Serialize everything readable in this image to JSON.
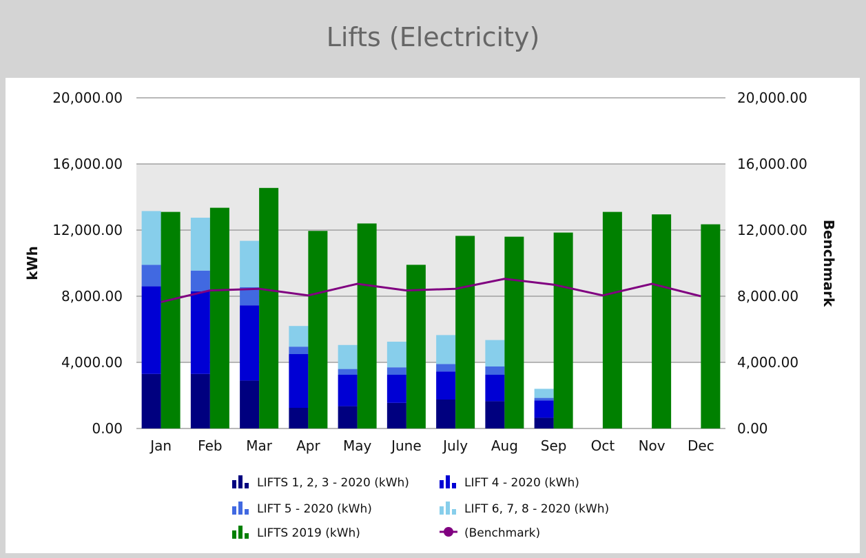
{
  "chart_data": {
    "type": "bar",
    "title": "Lifts (Electricity)",
    "ylabel": "kWh",
    "y2label": "Benchmark",
    "ylim": [
      0,
      20000
    ],
    "y2lim": [
      0,
      20000
    ],
    "y_ticks": [
      "0.00",
      "4,000.00",
      "8,000.00",
      "12,000.00",
      "16,000.00",
      "20,000.00"
    ],
    "y_tick_values": [
      0,
      4000,
      8000,
      12000,
      16000,
      20000
    ],
    "categories": [
      "Jan",
      "Feb",
      "Mar",
      "Apr",
      "May",
      "June",
      "July",
      "Aug",
      "Sep",
      "Oct",
      "Nov",
      "Dec"
    ],
    "shaded_band": [
      4000,
      16000
    ],
    "stacked_series": [
      {
        "name": "LIFTS 1, 2, 3 - 2020 (kWh)",
        "color": "#00007f",
        "values": [
          3300,
          3300,
          2900,
          1250,
          1350,
          1550,
          1750,
          1650,
          650,
          null,
          null,
          null
        ]
      },
      {
        "name": "LIFT 4 - 2020 (kWh)",
        "color": "#0000d4",
        "values": [
          5300,
          5000,
          4550,
          3250,
          1900,
          1700,
          1700,
          1600,
          1050,
          null,
          null,
          null
        ]
      },
      {
        "name": "LIFT 5 - 2020 (kWh)",
        "color": "#4169e1",
        "values": [
          1300,
          1250,
          1100,
          450,
          350,
          450,
          450,
          500,
          150,
          null,
          null,
          null
        ]
      },
      {
        "name": "LIFT 6, 7, 8 - 2020 (kWh)",
        "color": "#87ceeb",
        "values": [
          3250,
          3200,
          2800,
          1250,
          1450,
          1550,
          1750,
          1600,
          550,
          null,
          null,
          null
        ]
      }
    ],
    "bar_series": [
      {
        "name": "LIFTS 2019 (kWh)",
        "color": "#008000",
        "values": [
          13100,
          13350,
          14550,
          11950,
          12400,
          9900,
          11650,
          11600,
          11850,
          13100,
          12950,
          12350
        ]
      }
    ],
    "line_series": [
      {
        "name": "(Benchmark)",
        "color": "#800080",
        "axis": "right",
        "values": [
          7650,
          8350,
          8450,
          8050,
          8750,
          8350,
          8450,
          9050,
          8700,
          8050,
          8750,
          8000
        ]
      }
    ],
    "legend": [
      {
        "label": "LIFTS 1, 2, 3 - 2020 (kWh)",
        "color": "#00007f",
        "kind": "bar"
      },
      {
        "label": "LIFT 4 - 2020 (kWh)",
        "color": "#0000d4",
        "kind": "bar"
      },
      {
        "label": "LIFT 5 - 2020 (kWh)",
        "color": "#4169e1",
        "kind": "bar"
      },
      {
        "label": "LIFT 6, 7, 8 - 2020 (kWh)",
        "color": "#87ceeb",
        "kind": "bar"
      },
      {
        "label": "LIFTS 2019 (kWh)",
        "color": "#008000",
        "kind": "bar"
      },
      {
        "label": "(Benchmark)",
        "color": "#800080",
        "kind": "line"
      }
    ],
    "legend_position": "bottom"
  }
}
